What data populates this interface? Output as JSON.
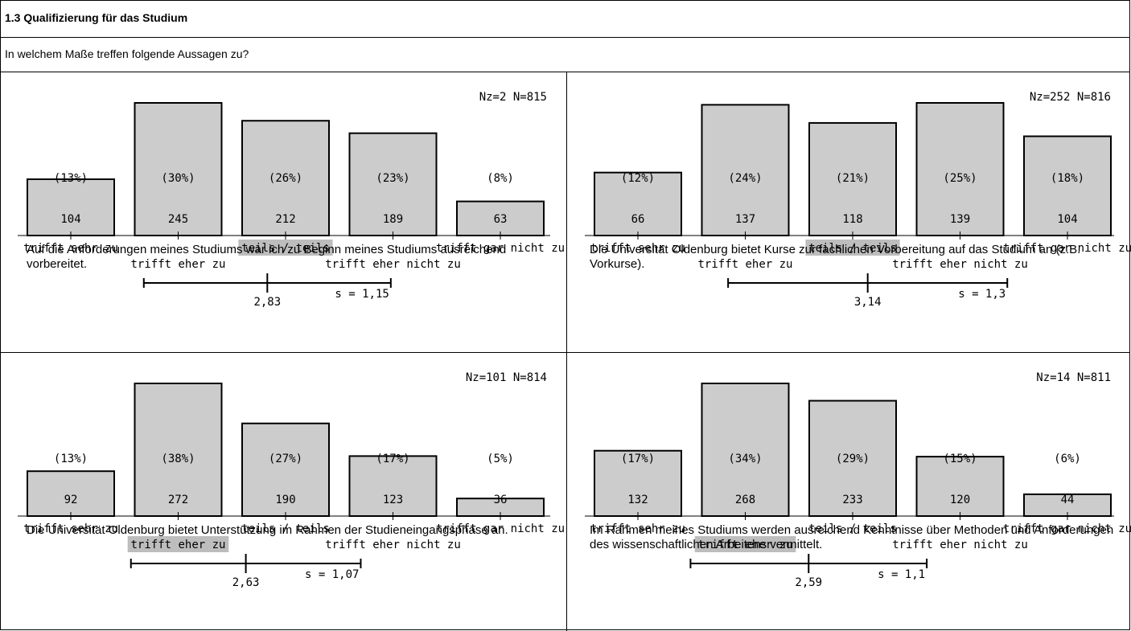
{
  "header": {
    "title": "1.3 Qualifizierung für das Studium"
  },
  "question": {
    "text": "In welchem Maße treffen folgende Aussagen zu?"
  },
  "chart_data": [
    {
      "type": "bar",
      "stats": "Nz=2  N=815",
      "categories": [
        "trifft sehr zu",
        "trifft eher zu",
        "teils / teils",
        "trifft eher nicht zu",
        "trifft gar nicht zu"
      ],
      "counts": [
        104,
        245,
        212,
        189,
        63
      ],
      "percents": [
        "(13%)",
        "(30%)",
        "(26%)",
        "(23%)",
        "(8%)"
      ],
      "highlight_index": 2,
      "mean": 2.83,
      "mean_label": "2,83",
      "sd": 1.15,
      "sd_label": "s = 1,15",
      "caption": "Auf die Anforderungen meines Studiums war ich zu Beginn meines Studiums ausreichend vorbereitet."
    },
    {
      "type": "bar",
      "stats": "Nz=252  N=816",
      "categories": [
        "trifft sehr zu",
        "trifft eher zu",
        "teils / teils",
        "trifft eher nicht zu",
        "trifft gar nicht zu"
      ],
      "counts": [
        66,
        137,
        118,
        139,
        104
      ],
      "percents": [
        "(12%)",
        "(24%)",
        "(21%)",
        "(25%)",
        "(18%)"
      ],
      "highlight_index": 2,
      "mean": 3.14,
      "mean_label": "3,14",
      "sd": 1.3,
      "sd_label": "s = 1,3",
      "caption": "Die Universität Oldenburg bietet Kurse zur fachlichen Vorbereitung auf das Studium an (z.B. Vorkurse)."
    },
    {
      "type": "bar",
      "stats": "Nz=101  N=814",
      "categories": [
        "trifft sehr zu",
        "trifft eher zu",
        "teils / teils",
        "trifft eher nicht zu",
        "trifft gar nicht zu"
      ],
      "counts": [
        92,
        272,
        190,
        123,
        36
      ],
      "percents": [
        "(13%)",
        "(38%)",
        "(27%)",
        "(17%)",
        "(5%)"
      ],
      "highlight_index": 1,
      "mean": 2.63,
      "mean_label": "2,63",
      "sd": 1.07,
      "sd_label": "s = 1,07",
      "caption": "Die Universität Oldenburg bietet Unterstützung im Rahmen der Studieneingangsphase an."
    },
    {
      "type": "bar",
      "stats": "Nz=14  N=811",
      "categories": [
        "trifft sehr zu",
        "trifft eher zu",
        "teils / teils",
        "trifft eher nicht zu",
        "trifft gar nicht zu"
      ],
      "counts": [
        132,
        268,
        233,
        120,
        44
      ],
      "percents": [
        "(17%)",
        "(34%)",
        "(29%)",
        "(15%)",
        "(6%)"
      ],
      "highlight_index": 1,
      "mean": 2.59,
      "mean_label": "2,59",
      "sd": 1.1,
      "sd_label": "s = 1,1",
      "caption": "Im Rahmen meines Studiums werden ausreichend Kenntnisse über Methoden und Anforderungen des wissenschaftlichen Arbeitens vermittelt."
    }
  ]
}
